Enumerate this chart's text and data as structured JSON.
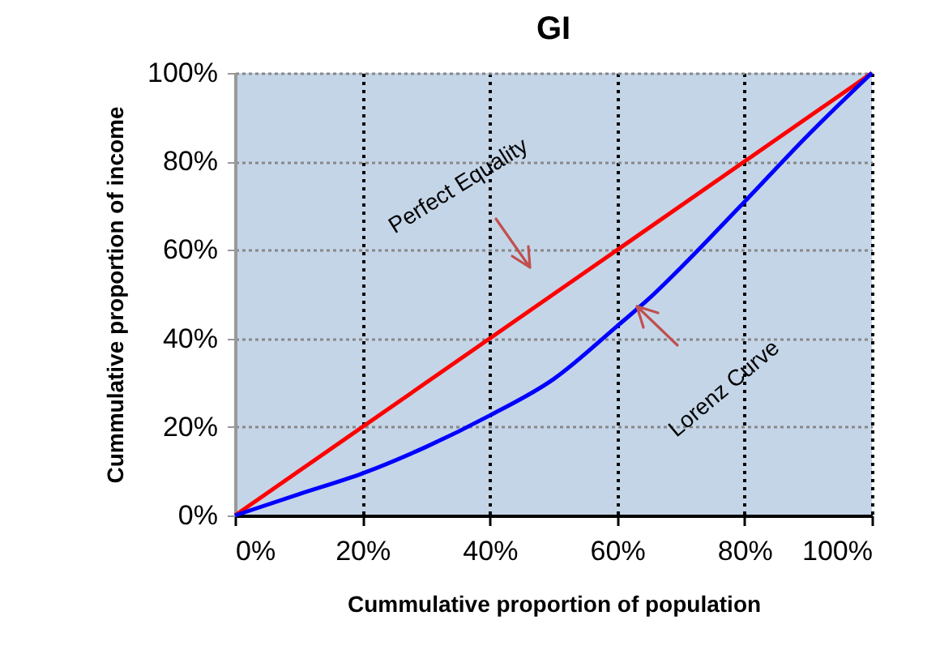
{
  "chart_data": {
    "type": "line",
    "title": "GI",
    "xlabel": "Cummulative proportion of population",
    "ylabel": "Cummulative proportion of income",
    "xlim": [
      0,
      100
    ],
    "ylim": [
      0,
      100
    ],
    "xticks": [
      {
        "value": 0,
        "label": "0%"
      },
      {
        "value": 20,
        "label": "20%"
      },
      {
        "value": 40,
        "label": "40%"
      },
      {
        "value": 60,
        "label": "60%"
      },
      {
        "value": 80,
        "label": "80%"
      },
      {
        "value": 100,
        "label": "100%"
      }
    ],
    "yticks": [
      {
        "value": 0,
        "label": "0%"
      },
      {
        "value": 20,
        "label": "20%"
      },
      {
        "value": 40,
        "label": "40%"
      },
      {
        "value": 60,
        "label": "60%"
      },
      {
        "value": 80,
        "label": "80%"
      },
      {
        "value": 100,
        "label": "100%"
      }
    ],
    "series": [
      {
        "name": "Perfect Equality",
        "color": "#ff0000",
        "x": [
          0,
          100
        ],
        "values": [
          0,
          100
        ]
      },
      {
        "name": "Lorenz Curve",
        "color": "#0000ff",
        "x": [
          0,
          10,
          20,
          30,
          40,
          50,
          60,
          65,
          70,
          80,
          90,
          100
        ],
        "values": [
          0,
          4.8,
          9.5,
          15.5,
          22.6,
          30.8,
          42.8,
          49,
          56,
          70.9,
          86,
          100
        ]
      }
    ],
    "grid": true,
    "legend": false,
    "marker": "none",
    "line_style": "solid"
  }
}
